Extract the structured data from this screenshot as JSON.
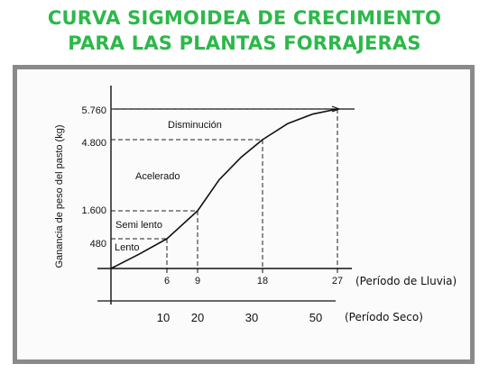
{
  "header": {
    "line1": "CURVA SIGMOIDEA DE CRECIMIENTO",
    "line2": "PARA LAS PLANTAS FORRAJERAS"
  },
  "colors": {
    "title": "#2db84a",
    "frame": "#8a8a8a",
    "ink": "#111111"
  },
  "chart_data": {
    "type": "line",
    "title": "",
    "ylabel": "Ganancia de peso del pasto (kg)",
    "y_ticks": [
      {
        "value": 480,
        "label": "480"
      },
      {
        "value": 1600,
        "label": "1.600"
      },
      {
        "value": 4800,
        "label": "4.800"
      },
      {
        "value": 5760,
        "label": "5.760"
      }
    ],
    "x_axis_primary": {
      "note": "(Período de Lluvia)",
      "ticks": [
        6,
        9,
        18,
        27
      ]
    },
    "x_axis_secondary": {
      "note": "(Período Seco)",
      "ticks": [
        10,
        20,
        30,
        50
      ]
    },
    "series": [
      {
        "x": [
          0,
          3,
          6,
          9,
          12,
          15,
          18,
          21,
          24,
          27
        ],
        "y": [
          0,
          230,
          480,
          1600,
          3000,
          4000,
          4800,
          5300,
          5600,
          5760
        ]
      }
    ],
    "phase_labels": [
      "Lento",
      "Semi lento",
      "Acelerado",
      "Disminución"
    ],
    "xlim": [
      0,
      27
    ],
    "ylim": [
      0,
      5760
    ],
    "grid": false,
    "guide_lines": "dashed"
  }
}
